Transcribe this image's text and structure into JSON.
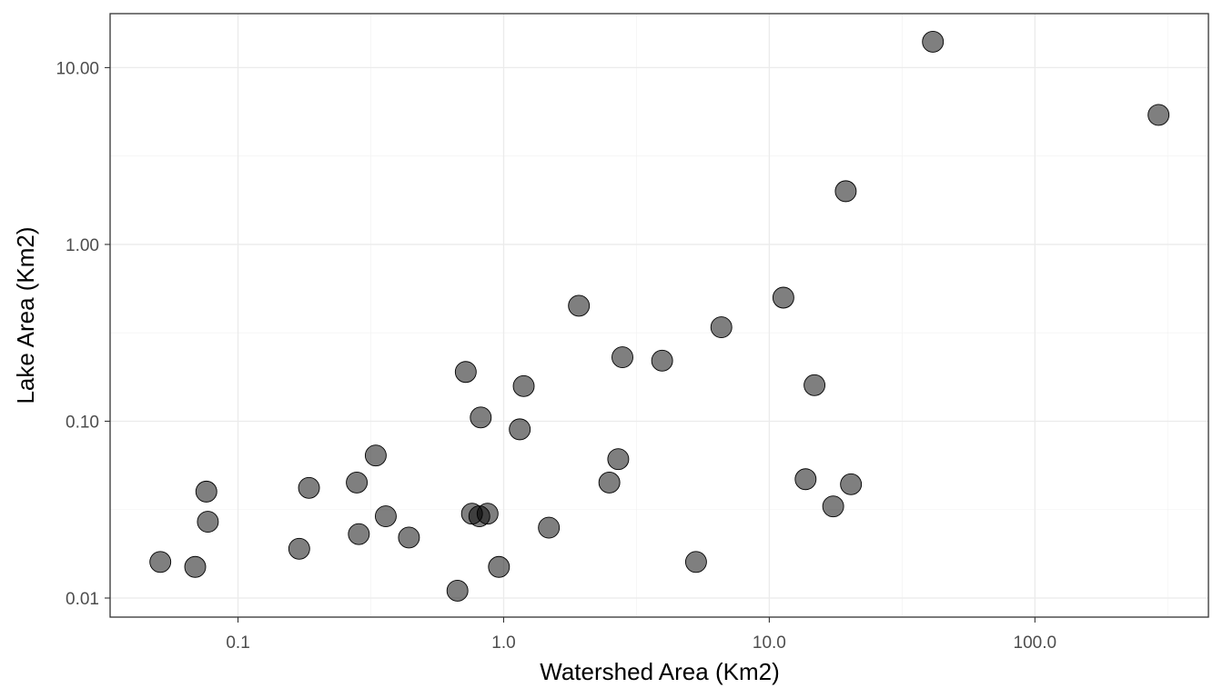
{
  "chart_data": {
    "type": "scatter",
    "title": "",
    "xlabel": "Watershed Area (Km2)",
    "ylabel": "Lake Area (Km2)",
    "xscale": "log10",
    "yscale": "log10",
    "xlim": [
      0.033,
      450
    ],
    "ylim": [
      0.0078,
      20.2
    ],
    "x_ticks": [
      0.1,
      1,
      10,
      100
    ],
    "x_tick_labels": [
      "0.1",
      "1.0",
      "10.0",
      "100.0"
    ],
    "y_ticks": [
      0.01,
      0.1,
      1,
      10
    ],
    "y_tick_labels": [
      "0.01",
      "0.10",
      "1.00",
      "10.00"
    ],
    "grid": true,
    "points": [
      {
        "x": 0.051,
        "y": 0.016
      },
      {
        "x": 0.069,
        "y": 0.015
      },
      {
        "x": 0.076,
        "y": 0.04
      },
      {
        "x": 0.077,
        "y": 0.027
      },
      {
        "x": 0.17,
        "y": 0.019
      },
      {
        "x": 0.185,
        "y": 0.042
      },
      {
        "x": 0.28,
        "y": 0.045
      },
      {
        "x": 0.285,
        "y": 0.023
      },
      {
        "x": 0.33,
        "y": 0.064
      },
      {
        "x": 0.36,
        "y": 0.029
      },
      {
        "x": 0.44,
        "y": 0.022
      },
      {
        "x": 0.67,
        "y": 0.011
      },
      {
        "x": 0.72,
        "y": 0.19
      },
      {
        "x": 0.76,
        "y": 0.03
      },
      {
        "x": 0.81,
        "y": 0.029
      },
      {
        "x": 0.82,
        "y": 0.105
      },
      {
        "x": 0.87,
        "y": 0.03
      },
      {
        "x": 0.96,
        "y": 0.015
      },
      {
        "x": 1.15,
        "y": 0.09
      },
      {
        "x": 1.19,
        "y": 0.158
      },
      {
        "x": 1.48,
        "y": 0.025
      },
      {
        "x": 1.92,
        "y": 0.45
      },
      {
        "x": 2.5,
        "y": 0.045
      },
      {
        "x": 2.7,
        "y": 0.061
      },
      {
        "x": 2.8,
        "y": 0.23
      },
      {
        "x": 3.95,
        "y": 0.22
      },
      {
        "x": 5.3,
        "y": 0.016
      },
      {
        "x": 6.6,
        "y": 0.34
      },
      {
        "x": 11.3,
        "y": 0.5
      },
      {
        "x": 13.7,
        "y": 0.047
      },
      {
        "x": 14.8,
        "y": 0.16
      },
      {
        "x": 17.4,
        "y": 0.033
      },
      {
        "x": 19.4,
        "y": 2.0
      },
      {
        "x": 20.3,
        "y": 0.044
      },
      {
        "x": 41.3,
        "y": 14.0
      },
      {
        "x": 292,
        "y": 5.4
      }
    ]
  }
}
